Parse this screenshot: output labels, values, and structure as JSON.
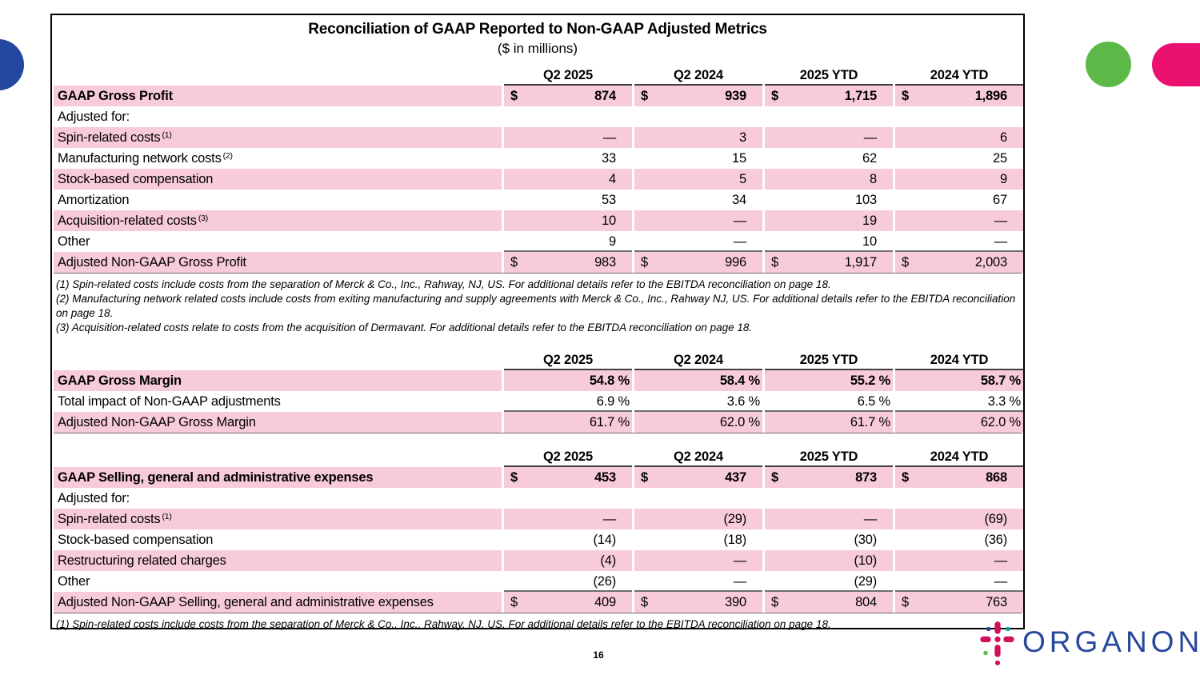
{
  "slide": {
    "page_number": "16"
  },
  "table_box": {
    "title": "Reconciliation of GAAP Reported to Non-GAAP Adjusted Metrics",
    "subtitle": "($ in millions)",
    "columns": [
      "Q2 2025",
      "Q2 2024",
      "2025 YTD",
      "2024 YTD"
    ],
    "sections": [
      {
        "id": "gross-profit",
        "rows": [
          {
            "label": "GAAP Gross Profit",
            "bold": true,
            "pink": true,
            "dollar": true,
            "values": [
              "874",
              "939",
              "1,715",
              "1,896"
            ]
          },
          {
            "label": "Adjusted for:",
            "values": [
              "",
              "",
              "",
              ""
            ]
          },
          {
            "label": "Spin-related costs",
            "sup": "(1)",
            "pink": true,
            "values": [
              "—",
              "3",
              "—",
              "6"
            ]
          },
          {
            "label": "Manufacturing network costs",
            "sup": "(2)",
            "values": [
              "33",
              "15",
              "62",
              "25"
            ]
          },
          {
            "label": "Stock-based compensation",
            "pink": true,
            "values": [
              "4",
              "5",
              "8",
              "9"
            ]
          },
          {
            "label": "Amortization",
            "values": [
              "53",
              "34",
              "103",
              "67"
            ]
          },
          {
            "label": "Acquisition-related costs",
            "sup": "(3)",
            "pink": true,
            "values": [
              "10",
              "—",
              "19",
              "—"
            ]
          },
          {
            "label": "Other",
            "rule": true,
            "values": [
              "9",
              "—",
              "10",
              "—"
            ]
          },
          {
            "label": "Adjusted Non-GAAP Gross Profit",
            "pink": true,
            "dollar": true,
            "total": true,
            "values": [
              "983",
              "996",
              "1,917",
              "2,003"
            ]
          }
        ],
        "footnotes": [
          "(1) Spin-related costs include costs from the separation of Merck & Co., Inc., Rahway, NJ, US. For additional details refer to the EBITDA reconciliation on page 18.",
          "(2) Manufacturing network related costs include costs from exiting manufacturing and supply agreements with Merck & Co., Inc., Rahway NJ, US. For additional details refer to the EBITDA reconciliation on page 18.",
          "(3) Acquisition-related costs relate to costs from the acquisition of Dermavant. For additional details refer to the EBITDA reconciliation on page 18."
        ]
      },
      {
        "id": "gross-margin",
        "rows": [
          {
            "label": "GAAP Gross Margin",
            "bold": true,
            "pink": true,
            "suffix": " %",
            "values": [
              "54.8",
              "58.4",
              "55.2",
              "58.7"
            ]
          },
          {
            "label": "Total impact of Non-GAAP adjustments",
            "suffix": " %",
            "rule": true,
            "values": [
              "6.9",
              "3.6",
              "6.5",
              "3.3"
            ]
          },
          {
            "label": "Adjusted Non-GAAP Gross Margin",
            "pink": true,
            "suffix": " %",
            "total": true,
            "values": [
              "61.7",
              "62.0",
              "61.7",
              "62.0"
            ]
          }
        ],
        "footnotes": []
      },
      {
        "id": "sgna",
        "rows": [
          {
            "label": "GAAP Selling, general and administrative expenses",
            "bold": true,
            "pink": true,
            "dollar": true,
            "values": [
              "453",
              "437",
              "873",
              "868"
            ]
          },
          {
            "label": "Adjusted for:",
            "values": [
              "",
              "",
              "",
              ""
            ]
          },
          {
            "label": "Spin-related costs",
            "sup": "(1)",
            "pink": true,
            "values": [
              "—",
              "(29)",
              "—",
              "(69)"
            ]
          },
          {
            "label": "Stock-based compensation",
            "values": [
              "(14)",
              "(18)",
              "(30)",
              "(36)"
            ]
          },
          {
            "label": "Restructuring related charges",
            "pink": true,
            "values": [
              "(4)",
              "—",
              "(10)",
              "—"
            ]
          },
          {
            "label": "Other",
            "rule": true,
            "values": [
              "(26)",
              "—",
              "(29)",
              "—"
            ]
          },
          {
            "label": "Adjusted Non-GAAP Selling, general and administrative expenses",
            "pink": true,
            "dollar": true,
            "total": true,
            "values": [
              "409",
              "390",
              "804",
              "763"
            ]
          }
        ],
        "footnotes": [
          "(1) Spin-related costs include costs from the separation of Merck & Co., Inc., Rahway, NJ, US. For additional details refer to the EBITDA reconciliation on page 18."
        ]
      }
    ]
  },
  "logo": {
    "wordmark": "ORGANON",
    "tm": "™"
  },
  "colors": {
    "row_pink": "#F8CBD8",
    "brand_green": "#5CB947",
    "brand_pink": "#EB1170",
    "brand_blue": "#24479F",
    "logo_magenta": "#D0105A",
    "wordmark_blue": "#27499C"
  }
}
